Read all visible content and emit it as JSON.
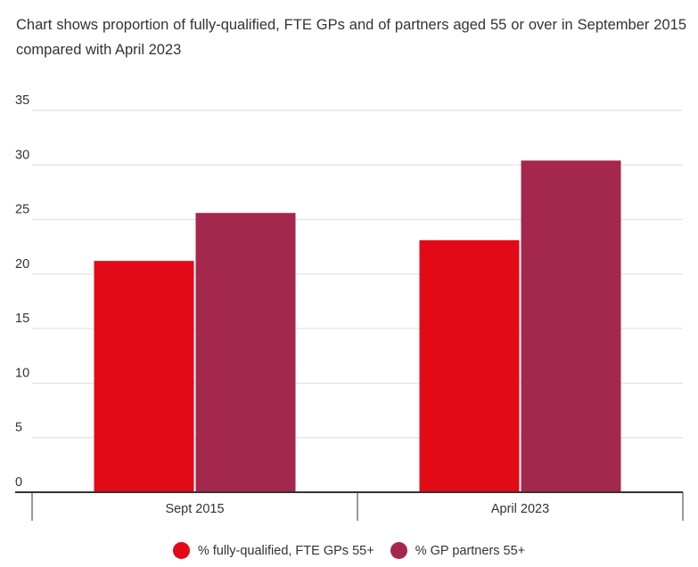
{
  "title": "Chart shows proportion of fully-qualified, FTE GPs and of partners aged 55 or over in September 2015 compared with April 2023",
  "colors": {
    "series1": "#e20a16",
    "series2": "#a4274e",
    "grid": "#dddddd",
    "axis": "#333333"
  },
  "chart_data": {
    "type": "bar",
    "categories": [
      "Sept 2015",
      "April 2023"
    ],
    "series": [
      {
        "name": "% fully-qualified, FTE GPs 55+",
        "values": [
          21.2,
          23.1
        ]
      },
      {
        "name": "% GP partners 55+",
        "values": [
          25.6,
          30.4
        ]
      }
    ],
    "xlabel": "",
    "ylabel": "",
    "ylim": [
      0,
      35
    ],
    "yticks": [
      "0",
      "5",
      "10",
      "15",
      "20",
      "25",
      "30",
      "35"
    ],
    "grid": true,
    "legend": "bottom-center"
  }
}
